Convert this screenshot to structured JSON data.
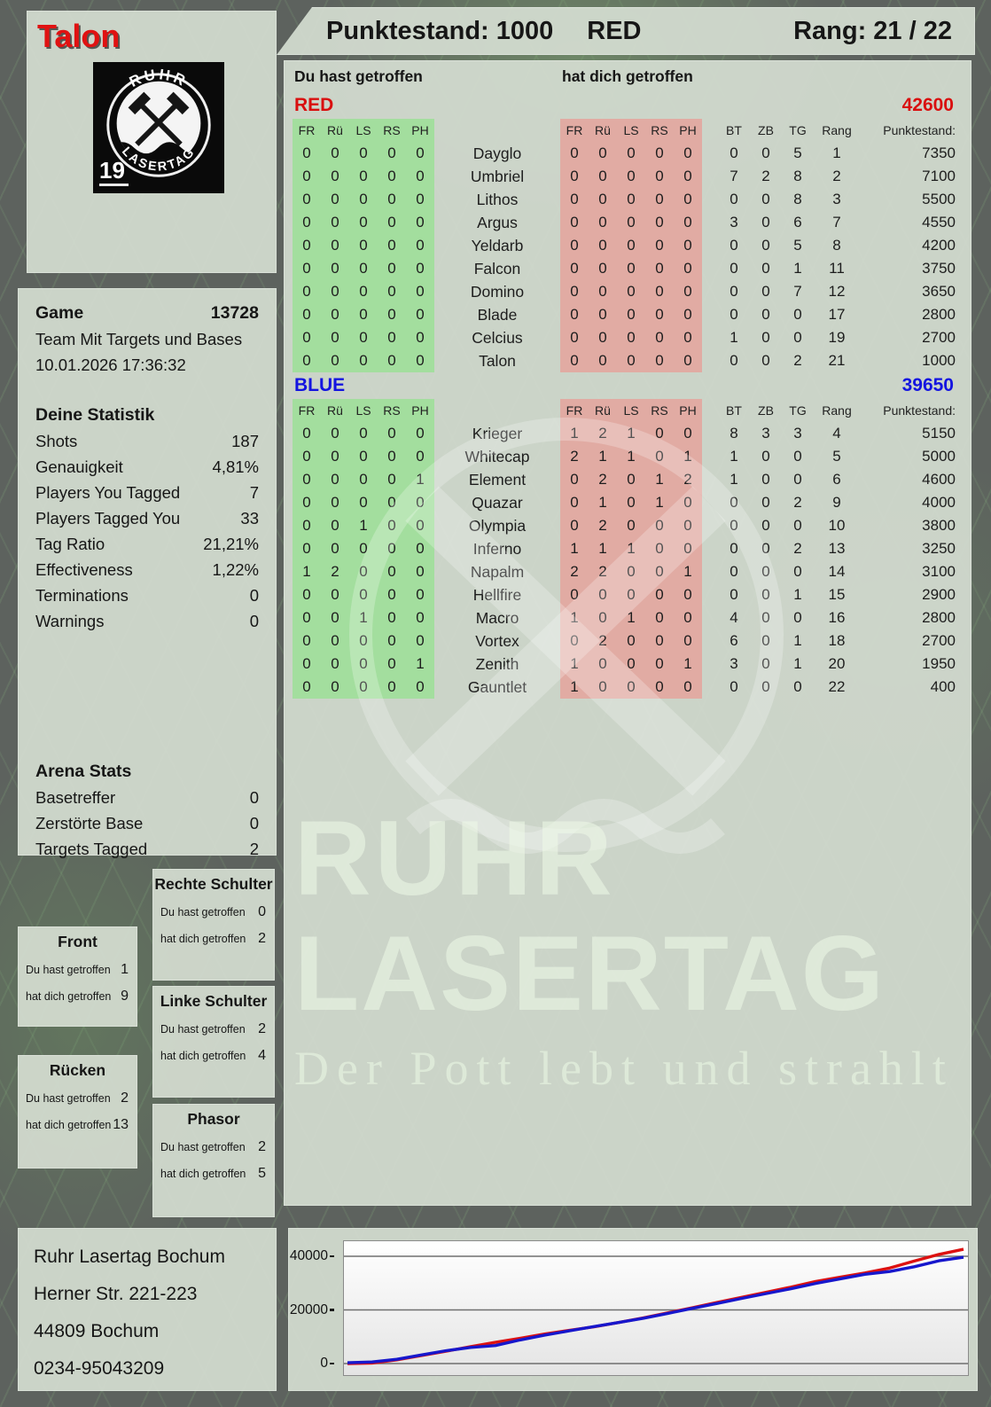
{
  "player": {
    "name": "Talon"
  },
  "header": {
    "punktestand": "Punktestand: 1000",
    "team": "RED",
    "rang": "Rang: 21 / 22"
  },
  "logo": {
    "arc_top": "RUHR",
    "arc_bottom": "LASERTAG",
    "badge_number": "19"
  },
  "game": {
    "label": "Game",
    "number": "13728",
    "mode": "Team Mit Targets und Bases",
    "datetime": "10.01.2026 17:36:32"
  },
  "stats": {
    "title": "Deine Statistik",
    "rows": [
      [
        "Shots",
        "187"
      ],
      [
        "Genauigkeit",
        "4,81%"
      ],
      [
        "Players You Tagged",
        "7"
      ],
      [
        "Players Tagged You",
        "33"
      ],
      [
        "Tag Ratio",
        "21,21%"
      ],
      [
        "Effectiveness",
        "1,22%"
      ],
      [
        "Terminations",
        "0"
      ],
      [
        "Warnings",
        "0"
      ]
    ]
  },
  "arena": {
    "title": "Arena Stats",
    "rows": [
      [
        "Basetreffer",
        "0"
      ],
      [
        "Zerstörte Base",
        "0"
      ],
      [
        "Targets Tagged",
        "2"
      ]
    ]
  },
  "hitzone_labels": {
    "you": "Du hast getroffen",
    "them": "hat dich getroffen"
  },
  "hitzones": [
    {
      "key": "rechte",
      "title": "Rechte Schulter",
      "you": "0",
      "them": "2"
    },
    {
      "key": "front",
      "title": "Front",
      "you": "1",
      "them": "9"
    },
    {
      "key": "linke",
      "title": "Linke Schulter",
      "you": "2",
      "them": "4"
    },
    {
      "key": "ruecken",
      "title": "Rücken",
      "you": "2",
      "them": "13"
    },
    {
      "key": "phasor",
      "title": "Phasor",
      "you": "2",
      "them": "5"
    }
  ],
  "tables": {
    "you_header": "Du hast getroffen",
    "them_header": "hat dich getroffen",
    "hit_cols": [
      "FR",
      "Rü",
      "LS",
      "RS",
      "PH"
    ],
    "right_cols": [
      "BT",
      "ZB",
      "TG",
      "Rang",
      "Punktestand:"
    ],
    "teams": [
      {
        "name": "RED",
        "color": "#d90f0f",
        "total": "42600",
        "rows": [
          {
            "player": "Dayglo",
            "you": [
              0,
              0,
              0,
              0,
              0
            ],
            "them": [
              0,
              0,
              0,
              0,
              0
            ],
            "bt": 0,
            "zb": 0,
            "tg": 5,
            "rang": 1,
            "punkte": 7350
          },
          {
            "player": "Umbriel",
            "you": [
              0,
              0,
              0,
              0,
              0
            ],
            "them": [
              0,
              0,
              0,
              0,
              0
            ],
            "bt": 7,
            "zb": 2,
            "tg": 8,
            "rang": 2,
            "punkte": 7100
          },
          {
            "player": "Lithos",
            "you": [
              0,
              0,
              0,
              0,
              0
            ],
            "them": [
              0,
              0,
              0,
              0,
              0
            ],
            "bt": 0,
            "zb": 0,
            "tg": 8,
            "rang": 3,
            "punkte": 5500
          },
          {
            "player": "Argus",
            "you": [
              0,
              0,
              0,
              0,
              0
            ],
            "them": [
              0,
              0,
              0,
              0,
              0
            ],
            "bt": 3,
            "zb": 0,
            "tg": 6,
            "rang": 7,
            "punkte": 4550
          },
          {
            "player": "Yeldarb",
            "you": [
              0,
              0,
              0,
              0,
              0
            ],
            "them": [
              0,
              0,
              0,
              0,
              0
            ],
            "bt": 0,
            "zb": 0,
            "tg": 5,
            "rang": 8,
            "punkte": 4200
          },
          {
            "player": "Falcon",
            "you": [
              0,
              0,
              0,
              0,
              0
            ],
            "them": [
              0,
              0,
              0,
              0,
              0
            ],
            "bt": 0,
            "zb": 0,
            "tg": 1,
            "rang": 11,
            "punkte": 3750
          },
          {
            "player": "Domino",
            "you": [
              0,
              0,
              0,
              0,
              0
            ],
            "them": [
              0,
              0,
              0,
              0,
              0
            ],
            "bt": 0,
            "zb": 0,
            "tg": 7,
            "rang": 12,
            "punkte": 3650
          },
          {
            "player": "Blade",
            "you": [
              0,
              0,
              0,
              0,
              0
            ],
            "them": [
              0,
              0,
              0,
              0,
              0
            ],
            "bt": 0,
            "zb": 0,
            "tg": 0,
            "rang": 17,
            "punkte": 2800
          },
          {
            "player": "Celcius",
            "you": [
              0,
              0,
              0,
              0,
              0
            ],
            "them": [
              0,
              0,
              0,
              0,
              0
            ],
            "bt": 1,
            "zb": 0,
            "tg": 0,
            "rang": 19,
            "punkte": 2700
          },
          {
            "player": "Talon",
            "you": [
              0,
              0,
              0,
              0,
              0
            ],
            "them": [
              0,
              0,
              0,
              0,
              0
            ],
            "bt": 0,
            "zb": 0,
            "tg": 2,
            "rang": 21,
            "punkte": 1000
          }
        ]
      },
      {
        "name": "BLUE",
        "color": "#1414e0",
        "total": "39650",
        "rows": [
          {
            "player": "Krieger",
            "you": [
              0,
              0,
              0,
              0,
              0
            ],
            "them": [
              1,
              2,
              1,
              0,
              0
            ],
            "bt": 8,
            "zb": 3,
            "tg": 3,
            "rang": 4,
            "punkte": 5150
          },
          {
            "player": "Whitecap",
            "you": [
              0,
              0,
              0,
              0,
              0
            ],
            "them": [
              2,
              1,
              1,
              0,
              1
            ],
            "bt": 1,
            "zb": 0,
            "tg": 0,
            "rang": 5,
            "punkte": 5000
          },
          {
            "player": "Element",
            "you": [
              0,
              0,
              0,
              0,
              1
            ],
            "them": [
              0,
              2,
              0,
              1,
              2
            ],
            "bt": 1,
            "zb": 0,
            "tg": 0,
            "rang": 6,
            "punkte": 4600
          },
          {
            "player": "Quazar",
            "you": [
              0,
              0,
              0,
              0,
              0
            ],
            "them": [
              0,
              1,
              0,
              1,
              0
            ],
            "bt": 0,
            "zb": 0,
            "tg": 2,
            "rang": 9,
            "punkte": 4000
          },
          {
            "player": "Olympia",
            "you": [
              0,
              0,
              1,
              0,
              0
            ],
            "them": [
              0,
              2,
              0,
              0,
              0
            ],
            "bt": 0,
            "zb": 0,
            "tg": 0,
            "rang": 10,
            "punkte": 3800
          },
          {
            "player": "Inferno",
            "you": [
              0,
              0,
              0,
              0,
              0
            ],
            "them": [
              1,
              1,
              1,
              0,
              0
            ],
            "bt": 0,
            "zb": 0,
            "tg": 2,
            "rang": 13,
            "punkte": 3250
          },
          {
            "player": "Napalm",
            "you": [
              1,
              2,
              0,
              0,
              0
            ],
            "them": [
              2,
              2,
              0,
              0,
              1
            ],
            "bt": 0,
            "zb": 0,
            "tg": 0,
            "rang": 14,
            "punkte": 3100
          },
          {
            "player": "Hellfire",
            "you": [
              0,
              0,
              0,
              0,
              0
            ],
            "them": [
              0,
              0,
              0,
              0,
              0
            ],
            "bt": 0,
            "zb": 0,
            "tg": 1,
            "rang": 15,
            "punkte": 2900
          },
          {
            "player": "Macro",
            "you": [
              0,
              0,
              1,
              0,
              0
            ],
            "them": [
              1,
              0,
              1,
              0,
              0
            ],
            "bt": 4,
            "zb": 0,
            "tg": 0,
            "rang": 16,
            "punkte": 2800
          },
          {
            "player": "Vortex",
            "you": [
              0,
              0,
              0,
              0,
              0
            ],
            "them": [
              0,
              2,
              0,
              0,
              0
            ],
            "bt": 6,
            "zb": 0,
            "tg": 1,
            "rang": 18,
            "punkte": 2700
          },
          {
            "player": "Zenith",
            "you": [
              0,
              0,
              0,
              0,
              1
            ],
            "them": [
              1,
              0,
              0,
              0,
              1
            ],
            "bt": 3,
            "zb": 0,
            "tg": 1,
            "rang": 20,
            "punkte": 1950
          },
          {
            "player": "Gauntlet",
            "you": [
              0,
              0,
              0,
              0,
              0
            ],
            "them": [
              1,
              0,
              0,
              0,
              0
            ],
            "bt": 0,
            "zb": 0,
            "tg": 0,
            "rang": 22,
            "punkte": 400
          }
        ]
      }
    ]
  },
  "watermark": {
    "line1": "RUHR",
    "line2": "LASERTAG",
    "line3": "Der Pott lebt und strahlt"
  },
  "address": {
    "lines": [
      "Ruhr Lasertag Bochum",
      "Herner Str. 221-223",
      "44809 Bochum",
      "0234-95043209"
    ]
  },
  "colors": {
    "accent_red": "#d90f0f",
    "accent_blue": "#1414e0",
    "hit_green": "#a3de9e",
    "hit_pink": "#e1aba3"
  },
  "chart_data": {
    "type": "line",
    "title": "",
    "xlabel": "",
    "ylabel": "",
    "x": [
      0,
      1,
      2,
      3,
      4,
      5,
      6,
      7,
      8,
      9,
      10,
      11,
      12,
      13,
      14,
      15,
      16,
      17,
      18,
      19,
      20,
      21,
      22,
      23,
      24,
      25
    ],
    "series": [
      {
        "name": "RED",
        "color": "#dd1111",
        "values": [
          0,
          200,
          1400,
          3000,
          4600,
          6300,
          7900,
          9400,
          11000,
          12400,
          13700,
          15300,
          17000,
          18900,
          20800,
          22800,
          24700,
          26600,
          28500,
          30600,
          32200,
          33800,
          35600,
          38200,
          40700,
          42600
        ]
      },
      {
        "name": "BLUE",
        "color": "#1717cc",
        "values": [
          300,
          600,
          1600,
          3200,
          4800,
          6000,
          6700,
          8800,
          10600,
          12200,
          13800,
          15300,
          16900,
          18700,
          20600,
          22400,
          24300,
          26100,
          27900,
          29900,
          31600,
          33300,
          34300,
          36100,
          38300,
          39650
        ]
      }
    ],
    "yticks": [
      0,
      20000,
      40000
    ],
    "ylim": [
      0,
      44000
    ],
    "grid": true,
    "legend": "none"
  }
}
